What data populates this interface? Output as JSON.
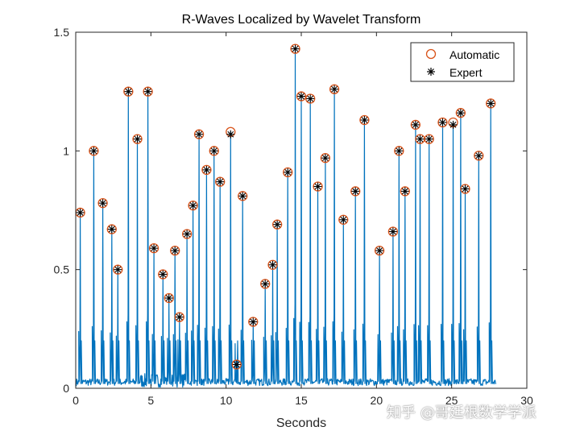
{
  "chart_data": {
    "type": "line",
    "title": "R-Waves Localized by Wavelet Transform",
    "xlabel": "Seconds",
    "ylabel": "",
    "xlim": [
      0,
      30
    ],
    "ylim": [
      0,
      1.5
    ],
    "xticks": [
      "0",
      "5",
      "10",
      "15",
      "20",
      "25",
      "30"
    ],
    "yticks": [
      "0",
      "0.5",
      "1",
      "1.5"
    ],
    "legend_position": "top-right",
    "grid": false,
    "colors": {
      "signal": "#0072BD",
      "automatic": "#D95319",
      "expert": "#000000"
    },
    "legend": [
      {
        "name": "Automatic",
        "marker": "circle"
      },
      {
        "name": "Expert",
        "marker": "asterisk"
      }
    ],
    "series": [
      {
        "name": "Automatic",
        "x": [
          0.3,
          1.2,
          1.8,
          2.4,
          2.8,
          3.5,
          4.1,
          4.8,
          5.2,
          5.8,
          6.2,
          6.6,
          6.9,
          7.4,
          7.8,
          8.2,
          8.7,
          9.2,
          9.6,
          10.3,
          10.7,
          11.1,
          11.8,
          12.6,
          13.1,
          13.4,
          14.1,
          14.6,
          15.0,
          15.6,
          16.1,
          16.6,
          17.2,
          17.8,
          18.6,
          19.2,
          20.2,
          21.1,
          21.5,
          21.9,
          22.6,
          22.9,
          23.5,
          24.4,
          25.1,
          25.6,
          25.9,
          26.8,
          27.6
        ],
        "y": [
          0.74,
          1.0,
          0.78,
          0.67,
          0.5,
          1.25,
          1.05,
          1.25,
          0.59,
          0.48,
          0.38,
          0.58,
          0.3,
          0.65,
          0.77,
          1.07,
          0.92,
          1.0,
          0.87,
          1.08,
          0.1,
          0.81,
          0.28,
          0.44,
          0.52,
          0.69,
          0.91,
          1.43,
          1.23,
          1.22,
          0.85,
          0.97,
          1.26,
          0.71,
          0.83,
          1.13,
          0.58,
          0.66,
          1.0,
          0.83,
          1.11,
          1.05,
          1.05,
          1.12,
          1.12,
          1.16,
          0.84,
          0.98,
          1.2
        ]
      },
      {
        "name": "Expert",
        "x": [
          0.3,
          1.2,
          1.8,
          2.4,
          2.8,
          3.5,
          4.1,
          4.8,
          5.2,
          5.8,
          6.2,
          6.6,
          6.9,
          7.4,
          7.8,
          8.2,
          8.7,
          9.2,
          9.6,
          10.3,
          10.7,
          11.1,
          11.8,
          12.6,
          13.1,
          13.4,
          14.1,
          14.6,
          15.0,
          15.6,
          16.1,
          16.6,
          17.2,
          17.8,
          18.6,
          19.2,
          20.2,
          21.1,
          21.5,
          21.9,
          22.6,
          22.9,
          23.5,
          24.4,
          25.1,
          25.6,
          25.9,
          26.8,
          27.6
        ],
        "y": [
          0.74,
          1.0,
          0.78,
          0.67,
          0.5,
          1.25,
          1.05,
          1.25,
          0.59,
          0.48,
          0.38,
          0.58,
          0.3,
          0.65,
          0.77,
          1.07,
          0.92,
          1.0,
          0.87,
          1.07,
          0.1,
          0.81,
          0.28,
          0.44,
          0.52,
          0.69,
          0.91,
          1.43,
          1.23,
          1.22,
          0.85,
          0.97,
          1.26,
          0.71,
          0.83,
          1.13,
          0.58,
          0.66,
          1.0,
          0.83,
          1.11,
          1.05,
          1.05,
          1.12,
          1.11,
          1.16,
          0.84,
          0.98,
          1.2
        ]
      }
    ]
  },
  "watermark": "知乎 @哥廷根数学学派"
}
